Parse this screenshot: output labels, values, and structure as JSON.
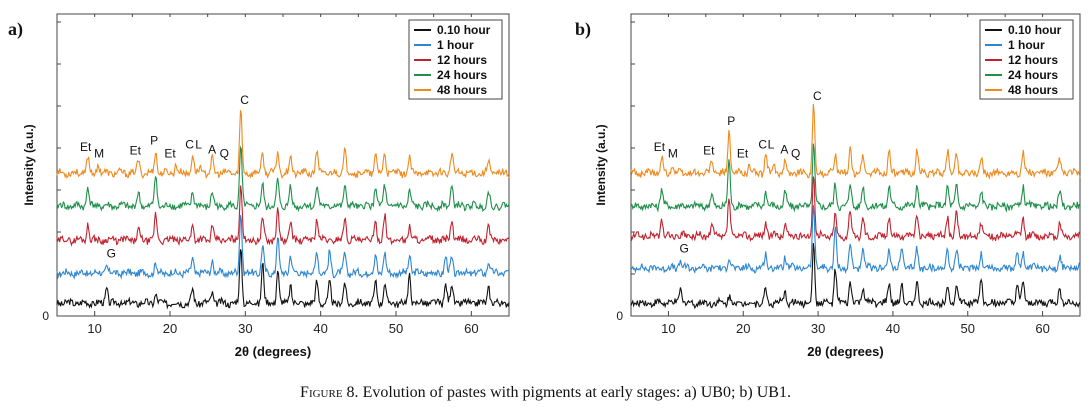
{
  "caption": {
    "lead": "Figure 8.",
    "text": "Evolution of pastes with pigments at early stages: a) UB0; b) UB1."
  },
  "series_colors": {
    "0.10 hour": "#111111",
    "1 hour": "#2e86d0",
    "12 hours": "#c0222e",
    "24 hours": "#1f8f4a",
    "48 hours": "#ee8a1e"
  },
  "chart_data": [
    {
      "panel_label": "a)",
      "type": "line",
      "xlabel": "2θ (degrees)",
      "ylabel": "Intensity (a.u.)",
      "xlim": [
        5,
        65
      ],
      "x_ticks": [
        10,
        20,
        30,
        40,
        50,
        60
      ],
      "y_tick_labels": [
        "0"
      ],
      "legend": {
        "position": "top-right",
        "entries": [
          "0.10 hour",
          "1 hour",
          "12 hours",
          "24 hours",
          "48 hours"
        ]
      },
      "series": [
        {
          "name": "0.10 hour",
          "peaks": [
            [
              11.6,
              2.6
            ],
            [
              18.1,
              1.4
            ],
            [
              23.0,
              2.2
            ],
            [
              25.6,
              1.8
            ],
            [
              29.4,
              8.8
            ],
            [
              32.3,
              6.6
            ],
            [
              34.3,
              5.5
            ],
            [
              36.0,
              3.0
            ],
            [
              39.5,
              3.5
            ],
            [
              41.2,
              3.2
            ],
            [
              43.2,
              3.2
            ],
            [
              47.3,
              3.3
            ],
            [
              48.5,
              3.3
            ],
            [
              51.8,
              4.6
            ],
            [
              56.6,
              3.2
            ],
            [
              57.4,
              3.0
            ],
            [
              62.3,
              2.7
            ]
          ]
        },
        {
          "name": "1 hour",
          "peaks": [
            [
              11.6,
              1.2
            ],
            [
              18.1,
              1.4
            ],
            [
              23.0,
              2.4
            ],
            [
              25.6,
              2.0
            ],
            [
              29.4,
              10.0
            ],
            [
              32.3,
              4.5
            ],
            [
              34.3,
              6.0
            ],
            [
              36.0,
              3.0
            ],
            [
              39.5,
              3.8
            ],
            [
              41.2,
              3.6
            ],
            [
              43.2,
              3.2
            ],
            [
              47.3,
              3.2
            ],
            [
              48.5,
              3.2
            ],
            [
              51.8,
              3.0
            ],
            [
              56.6,
              2.6
            ],
            [
              57.4,
              2.4
            ],
            [
              62.3,
              2.0
            ]
          ]
        },
        {
          "name": "12 hours",
          "peaks": [
            [
              9.1,
              2.6
            ],
            [
              15.8,
              1.6
            ],
            [
              18.1,
              4.0
            ],
            [
              23.0,
              2.6
            ],
            [
              25.6,
              2.2
            ],
            [
              29.4,
              9.4
            ],
            [
              32.3,
              3.6
            ],
            [
              34.3,
              4.6
            ],
            [
              36.0,
              3.0
            ],
            [
              39.5,
              3.6
            ],
            [
              43.2,
              4.0
            ],
            [
              47.3,
              3.0
            ],
            [
              48.5,
              3.8
            ],
            [
              51.8,
              2.6
            ],
            [
              57.4,
              3.2
            ],
            [
              62.3,
              2.2
            ]
          ]
        },
        {
          "name": "24 hours",
          "peaks": [
            [
              9.1,
              3.2
            ],
            [
              15.8,
              2.0
            ],
            [
              18.1,
              5.2
            ],
            [
              23.0,
              2.4
            ],
            [
              25.6,
              2.2
            ],
            [
              29.4,
              9.8
            ],
            [
              32.3,
              3.4
            ],
            [
              34.3,
              4.2
            ],
            [
              36.0,
              3.2
            ],
            [
              39.5,
              3.6
            ],
            [
              43.2,
              3.6
            ],
            [
              47.3,
              3.4
            ],
            [
              48.5,
              3.2
            ],
            [
              51.8,
              2.4
            ],
            [
              57.4,
              3.4
            ],
            [
              62.3,
              2.2
            ]
          ]
        },
        {
          "name": "48 hours",
          "peaks": [
            [
              9.1,
              2.6
            ],
            [
              10.5,
              1.4
            ],
            [
              15.8,
              2.0
            ],
            [
              18.1,
              3.6
            ],
            [
              20.8,
              1.4
            ],
            [
              23.0,
              3.0
            ],
            [
              24.1,
              1.2
            ],
            [
              25.6,
              2.2
            ],
            [
              29.4,
              10.2
            ],
            [
              32.3,
              3.2
            ],
            [
              34.3,
              3.6
            ],
            [
              36.0,
              2.8
            ],
            [
              39.5,
              3.6
            ],
            [
              43.2,
              3.8
            ],
            [
              47.3,
              3.0
            ],
            [
              48.5,
              3.2
            ],
            [
              51.8,
              2.2
            ],
            [
              57.4,
              3.2
            ],
            [
              62.3,
              2.2
            ]
          ]
        }
      ],
      "annotations": [
        {
          "text": "Et",
          "x": 8.8,
          "series": "48 hours"
        },
        {
          "text": "M",
          "x": 10.6,
          "series": "48 hours"
        },
        {
          "text": "Et",
          "x": 15.4,
          "series": "48 hours"
        },
        {
          "text": "P",
          "x": 17.9,
          "series": "48 hours"
        },
        {
          "text": "Et",
          "x": 20.0,
          "series": "48 hours"
        },
        {
          "text": "C",
          "x": 22.6,
          "series": "48 hours"
        },
        {
          "text": "L",
          "x": 23.8,
          "series": "48 hours"
        },
        {
          "text": "A",
          "x": 25.6,
          "series": "48 hours"
        },
        {
          "text": "Q",
          "x": 27.2,
          "series": "48 hours"
        },
        {
          "text": "C",
          "x": 29.9,
          "series": "48 hours"
        },
        {
          "text": "G",
          "x": 12.2,
          "series": "1 hour"
        }
      ]
    },
    {
      "panel_label": "b)",
      "type": "line",
      "xlabel": "2θ (degrees)",
      "ylabel": "Intensity (a.u.)",
      "xlim": [
        5,
        65
      ],
      "x_ticks": [
        10,
        20,
        30,
        40,
        50,
        60
      ],
      "y_tick_labels": [
        "0"
      ],
      "legend": {
        "position": "top-right",
        "entries": [
          "0.10 hour",
          "1 hour",
          "12 hours",
          "24 hours",
          "48 hours"
        ]
      },
      "series": [
        {
          "name": "0.10 hour",
          "peaks": [
            [
              11.6,
              2.6
            ],
            [
              18.1,
              1.2
            ],
            [
              23.0,
              2.2
            ],
            [
              25.6,
              1.8
            ],
            [
              29.4,
              9.4
            ],
            [
              32.3,
              5.6
            ],
            [
              34.3,
              3.4
            ],
            [
              36.0,
              2.8
            ],
            [
              39.5,
              3.2
            ],
            [
              41.2,
              3.0
            ],
            [
              43.2,
              3.2
            ],
            [
              47.3,
              3.0
            ],
            [
              48.5,
              3.4
            ],
            [
              51.8,
              4.2
            ],
            [
              56.6,
              3.0
            ],
            [
              57.4,
              3.4
            ],
            [
              62.3,
              2.6
            ]
          ]
        },
        {
          "name": "1 hour",
          "peaks": [
            [
              11.6,
              1.2
            ],
            [
              18.1,
              1.6
            ],
            [
              23.0,
              2.4
            ],
            [
              25.6,
              2.0
            ],
            [
              29.4,
              10.4
            ],
            [
              32.3,
              6.4
            ],
            [
              34.3,
              3.8
            ],
            [
              36.0,
              3.0
            ],
            [
              39.5,
              3.2
            ],
            [
              41.2,
              3.4
            ],
            [
              43.2,
              3.2
            ],
            [
              47.3,
              3.0
            ],
            [
              48.5,
              3.0
            ],
            [
              51.8,
              2.6
            ],
            [
              56.6,
              2.6
            ],
            [
              57.4,
              2.4
            ],
            [
              62.3,
              2.0
            ]
          ]
        },
        {
          "name": "12 hours",
          "peaks": [
            [
              9.1,
              2.6
            ],
            [
              15.8,
              1.6
            ],
            [
              18.1,
              6.0
            ],
            [
              23.0,
              2.4
            ],
            [
              25.6,
              2.0
            ],
            [
              29.4,
              9.8
            ],
            [
              32.3,
              3.4
            ],
            [
              34.3,
              4.0
            ],
            [
              36.0,
              3.0
            ],
            [
              39.5,
              3.4
            ],
            [
              43.2,
              3.8
            ],
            [
              47.3,
              3.2
            ],
            [
              48.5,
              3.6
            ],
            [
              51.8,
              2.4
            ],
            [
              57.4,
              3.0
            ],
            [
              62.3,
              2.2
            ]
          ]
        },
        {
          "name": "24 hours",
          "peaks": [
            [
              9.1,
              3.0
            ],
            [
              15.8,
              1.8
            ],
            [
              18.1,
              7.4
            ],
            [
              23.0,
              2.6
            ],
            [
              25.6,
              2.2
            ],
            [
              29.4,
              10.0
            ],
            [
              32.3,
              3.4
            ],
            [
              34.3,
              3.8
            ],
            [
              36.0,
              3.0
            ],
            [
              39.5,
              3.4
            ],
            [
              43.2,
              3.6
            ],
            [
              47.3,
              3.6
            ],
            [
              48.5,
              3.2
            ],
            [
              51.8,
              2.4
            ],
            [
              57.4,
              3.4
            ],
            [
              62.3,
              2.2
            ]
          ]
        },
        {
          "name": "48 hours",
          "peaks": [
            [
              9.1,
              2.6
            ],
            [
              10.5,
              1.4
            ],
            [
              15.8,
              2.0
            ],
            [
              18.1,
              6.8
            ],
            [
              20.8,
              1.4
            ],
            [
              23.0,
              3.0
            ],
            [
              24.1,
              1.2
            ],
            [
              25.6,
              2.2
            ],
            [
              29.4,
              10.8
            ],
            [
              32.3,
              3.0
            ],
            [
              34.3,
              4.0
            ],
            [
              36.0,
              2.8
            ],
            [
              39.5,
              3.4
            ],
            [
              43.2,
              3.6
            ],
            [
              47.3,
              3.6
            ],
            [
              48.5,
              3.4
            ],
            [
              51.8,
              2.2
            ],
            [
              57.4,
              3.4
            ],
            [
              62.3,
              2.2
            ]
          ]
        }
      ],
      "annotations": [
        {
          "text": "Et",
          "x": 8.8,
          "series": "48 hours"
        },
        {
          "text": "M",
          "x": 10.6,
          "series": "48 hours"
        },
        {
          "text": "Et",
          "x": 15.4,
          "series": "48 hours"
        },
        {
          "text": "P",
          "x": 18.4,
          "series": "48 hours"
        },
        {
          "text": "Et",
          "x": 19.9,
          "series": "48 hours"
        },
        {
          "text": "C",
          "x": 22.6,
          "series": "48 hours"
        },
        {
          "text": "L",
          "x": 23.7,
          "series": "48 hours"
        },
        {
          "text": "A",
          "x": 25.5,
          "series": "48 hours"
        },
        {
          "text": "Q",
          "x": 27.0,
          "series": "48 hours"
        },
        {
          "text": "C",
          "x": 29.9,
          "series": "48 hours"
        },
        {
          "text": "G",
          "x": 12.1,
          "series": "1 hour"
        }
      ]
    }
  ]
}
